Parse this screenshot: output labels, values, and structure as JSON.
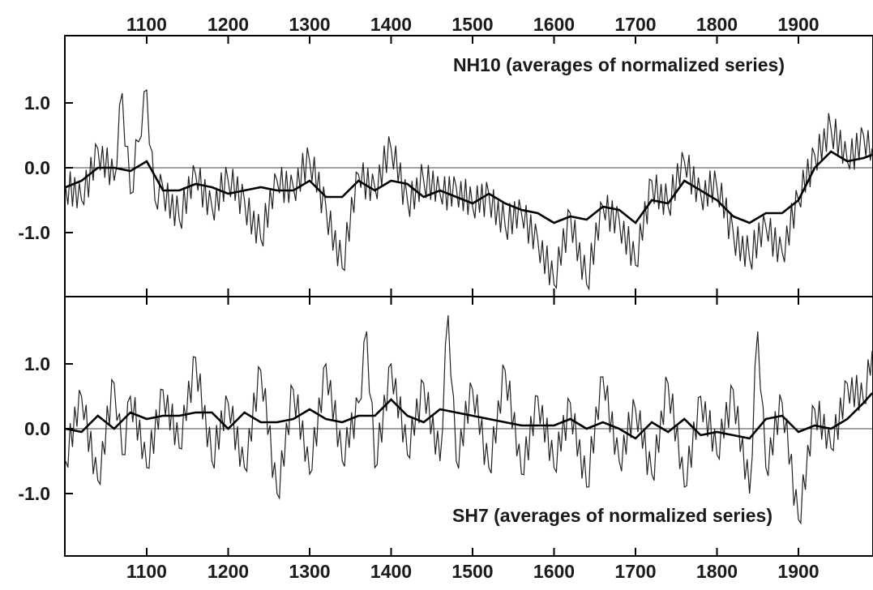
{
  "chart_data": [
    {
      "type": "line",
      "title": "NH10 (averages of normalized series)",
      "title_position": "top-right",
      "xlim": [
        1000,
        1991
      ],
      "ylim": [
        -2.0,
        1.9
      ],
      "x_ticks": [
        1100,
        1200,
        1300,
        1400,
        1500,
        1600,
        1700,
        1800,
        1900
      ],
      "x_tick_labels": [
        "1100",
        "1200",
        "1300",
        "1400",
        "1500",
        "1600",
        "1700",
        "1800",
        "1900"
      ],
      "x_tick_labels_side": "top",
      "y_ticks": [
        1.0,
        0.0,
        -1.0
      ],
      "y_tick_labels": [
        "1.0",
        "0.0",
        "-1.0"
      ],
      "zero_line": true,
      "grid": false,
      "series": [
        {
          "role": "annual",
          "x": [
            1000,
            1020,
            1040,
            1060,
            1070,
            1080,
            1090,
            1100,
            1110,
            1120,
            1140,
            1160,
            1180,
            1200,
            1220,
            1240,
            1260,
            1280,
            1300,
            1320,
            1340,
            1360,
            1380,
            1400,
            1420,
            1440,
            1460,
            1480,
            1500,
            1520,
            1540,
            1560,
            1580,
            1600,
            1620,
            1640,
            1660,
            1680,
            1700,
            1720,
            1740,
            1760,
            1780,
            1800,
            1820,
            1840,
            1860,
            1880,
            1900,
            1920,
            1940,
            1960,
            1980,
            1991
          ],
          "y": [
            -0.3,
            -0.5,
            0.3,
            -0.2,
            1.15,
            -0.4,
            0.4,
            1.2,
            -0.5,
            -0.3,
            -0.8,
            -0.1,
            -0.6,
            -0.2,
            -0.5,
            -1.1,
            -0.2,
            -0.3,
            0.1,
            -0.6,
            -1.55,
            -0.1,
            -0.3,
            0.3,
            -0.5,
            -0.2,
            -0.4,
            -0.3,
            -0.6,
            -0.4,
            -0.9,
            -0.7,
            -1.1,
            -1.8,
            -0.7,
            -1.8,
            -0.6,
            -0.8,
            -1.5,
            -0.2,
            -0.6,
            0.1,
            -0.4,
            -0.3,
            -1.0,
            -1.4,
            -0.9,
            -1.3,
            -0.5,
            0.2,
            0.6,
            0.1,
            0.5,
            0.3
          ]
        },
        {
          "role": "smoothed",
          "x": [
            1000,
            1020,
            1040,
            1060,
            1080,
            1100,
            1120,
            1140,
            1160,
            1180,
            1200,
            1220,
            1240,
            1260,
            1280,
            1300,
            1320,
            1340,
            1360,
            1380,
            1400,
            1420,
            1440,
            1460,
            1480,
            1500,
            1520,
            1540,
            1560,
            1580,
            1600,
            1620,
            1640,
            1660,
            1680,
            1700,
            1720,
            1740,
            1760,
            1780,
            1800,
            1820,
            1840,
            1860,
            1880,
            1900,
            1920,
            1940,
            1960,
            1980,
            1991
          ],
          "y": [
            -0.3,
            -0.2,
            0.0,
            0.0,
            -0.05,
            0.1,
            -0.35,
            -0.35,
            -0.25,
            -0.3,
            -0.4,
            -0.35,
            -0.3,
            -0.35,
            -0.35,
            -0.2,
            -0.45,
            -0.45,
            -0.2,
            -0.35,
            -0.2,
            -0.25,
            -0.45,
            -0.35,
            -0.45,
            -0.55,
            -0.4,
            -0.55,
            -0.65,
            -0.7,
            -0.85,
            -0.75,
            -0.8,
            -0.6,
            -0.65,
            -0.85,
            -0.5,
            -0.55,
            -0.2,
            -0.35,
            -0.5,
            -0.75,
            -0.85,
            -0.7,
            -0.7,
            -0.5,
            0.0,
            0.25,
            0.1,
            0.15,
            0.2
          ]
        }
      ]
    },
    {
      "type": "line",
      "title": "SH7 (averages of normalized series)",
      "title_position": "bottom-right",
      "xlim": [
        1000,
        1991
      ],
      "ylim": [
        -2.0,
        1.9
      ],
      "x_ticks": [
        1100,
        1200,
        1300,
        1400,
        1500,
        1600,
        1700,
        1800,
        1900
      ],
      "x_tick_labels": [
        "1100",
        "1200",
        "1300",
        "1400",
        "1500",
        "1600",
        "1700",
        "1800",
        "1900"
      ],
      "x_tick_labels_side": "bottom",
      "y_ticks": [
        1.0,
        0.0,
        -1.0
      ],
      "y_tick_labels": [
        "1.0",
        "0.0",
        "-1.0"
      ],
      "zero_line": true,
      "grid": false,
      "series": [
        {
          "role": "annual",
          "x": [
            1000,
            1020,
            1040,
            1060,
            1070,
            1080,
            1100,
            1120,
            1140,
            1160,
            1180,
            1200,
            1220,
            1240,
            1260,
            1280,
            1300,
            1320,
            1340,
            1360,
            1370,
            1380,
            1400,
            1420,
            1440,
            1460,
            1470,
            1480,
            1500,
            1520,
            1540,
            1560,
            1580,
            1600,
            1620,
            1640,
            1660,
            1680,
            1700,
            1720,
            1740,
            1760,
            1780,
            1800,
            1820,
            1840,
            1850,
            1860,
            1880,
            1900,
            1920,
            1940,
            1960,
            1980,
            1991
          ],
          "y": [
            -0.5,
            0.5,
            -0.8,
            0.7,
            -0.4,
            0.5,
            -0.6,
            0.6,
            -0.3,
            1.1,
            -0.5,
            0.4,
            -0.6,
            0.9,
            -1.0,
            0.6,
            -0.7,
            1.0,
            -0.5,
            0.4,
            1.5,
            -0.6,
            1.0,
            -0.4,
            0.7,
            -0.5,
            1.75,
            -0.5,
            0.6,
            -0.6,
            0.9,
            -0.7,
            0.5,
            -0.6,
            0.4,
            -0.9,
            0.8,
            -0.5,
            0.3,
            -0.7,
            0.7,
            -0.9,
            0.5,
            -0.4,
            0.6,
            -1.0,
            1.5,
            -0.6,
            0.4,
            -1.4,
            0.3,
            -0.3,
            0.7,
            0.4,
            1.2
          ]
        },
        {
          "role": "smoothed",
          "x": [
            1000,
            1020,
            1040,
            1060,
            1080,
            1100,
            1120,
            1140,
            1160,
            1180,
            1200,
            1220,
            1240,
            1260,
            1280,
            1300,
            1320,
            1340,
            1360,
            1380,
            1400,
            1420,
            1440,
            1460,
            1480,
            1500,
            1520,
            1540,
            1560,
            1580,
            1600,
            1620,
            1640,
            1660,
            1680,
            1700,
            1720,
            1740,
            1760,
            1780,
            1800,
            1820,
            1840,
            1860,
            1880,
            1900,
            1920,
            1940,
            1960,
            1980,
            1991
          ],
          "y": [
            0.0,
            -0.05,
            0.2,
            0.0,
            0.25,
            0.15,
            0.2,
            0.2,
            0.25,
            0.25,
            0.0,
            0.25,
            0.1,
            0.1,
            0.15,
            0.3,
            0.15,
            0.1,
            0.2,
            0.2,
            0.45,
            0.2,
            0.1,
            0.3,
            0.25,
            0.2,
            0.15,
            0.1,
            0.05,
            0.05,
            0.05,
            0.15,
            0.0,
            0.1,
            0.0,
            -0.15,
            0.1,
            -0.05,
            0.15,
            -0.1,
            -0.05,
            -0.1,
            -0.15,
            0.15,
            0.2,
            -0.05,
            0.05,
            0.0,
            0.15,
            0.4,
            0.55
          ]
        }
      ]
    }
  ]
}
